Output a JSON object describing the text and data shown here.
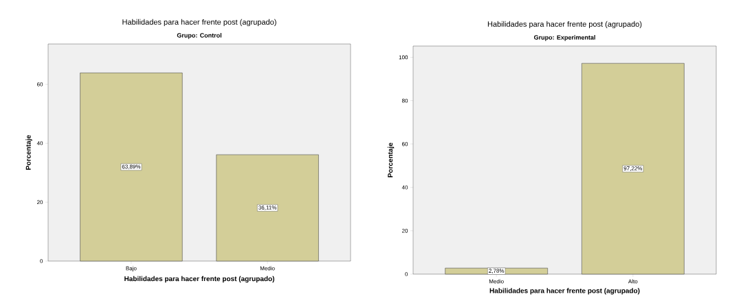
{
  "chart_data": [
    {
      "type": "bar",
      "title": "Habilidades para hacer frente post (agrupado)",
      "subtitle": "Grupo: Control",
      "xlabel": "Habilidades para hacer frente post (agrupado)",
      "ylabel": "Porcentaje",
      "categories": [
        "Bajo",
        "Medio"
      ],
      "values": [
        63.89,
        36.11
      ],
      "value_labels": [
        "63,89%",
        "36,11%"
      ],
      "color": "#d3ce98",
      "ylim": [
        0,
        73.7
      ],
      "yticks": [
        0,
        20,
        40,
        60
      ]
    },
    {
      "type": "bar",
      "title": "Habilidades para hacer frente post (agrupado)",
      "subtitle": "Grupo: Experimental",
      "xlabel": "Habilidades para hacer frente post (agrupado)",
      "ylabel": "Porcentaje",
      "categories": [
        "Medio",
        "Alto"
      ],
      "values": [
        2.78,
        97.22
      ],
      "value_labels": [
        "2,78%",
        "97,22%"
      ],
      "color": "#d3ce98",
      "ylim": [
        0,
        105.2
      ],
      "yticks": [
        0,
        20,
        40,
        60,
        80,
        100
      ]
    }
  ]
}
